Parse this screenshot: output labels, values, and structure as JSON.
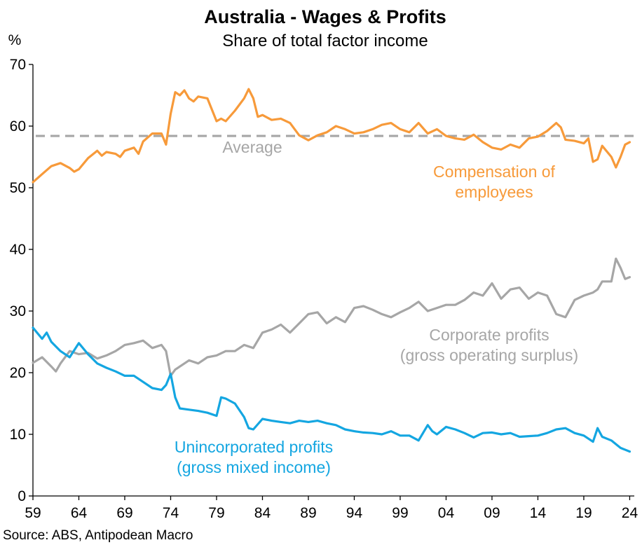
{
  "chart_data": {
    "type": "line",
    "title": "Australia - Wages & Profits",
    "subtitle": "Share of total factor income",
    "ylabel": "%",
    "ylim": [
      0,
      70
    ],
    "yticks": [
      0,
      10,
      20,
      30,
      40,
      50,
      60,
      70
    ],
    "xlim": [
      1959,
      2024.5
    ],
    "xticks": [
      {
        "year": 1959,
        "label": "59"
      },
      {
        "year": 1964,
        "label": "64"
      },
      {
        "year": 1969,
        "label": "69"
      },
      {
        "year": 1974,
        "label": "74"
      },
      {
        "year": 1979,
        "label": "79"
      },
      {
        "year": 1984,
        "label": "84"
      },
      {
        "year": 1989,
        "label": "89"
      },
      {
        "year": 1994,
        "label": "94"
      },
      {
        "year": 1999,
        "label": "99"
      },
      {
        "year": 2004,
        "label": "04"
      },
      {
        "year": 2009,
        "label": "09"
      },
      {
        "year": 2014,
        "label": "14"
      },
      {
        "year": 2019,
        "label": "19"
      },
      {
        "year": 2024,
        "label": "24"
      }
    ],
    "average": {
      "label": "Average",
      "value": 58.4,
      "color": "#a6a6a6"
    },
    "series": [
      {
        "name": "Compensation of employees",
        "label_lines": [
          "Compensation of",
          "employees"
        ],
        "color": "#f79a3a",
        "x": [
          1959.0,
          1960.0,
          1961.0,
          1962.0,
          1963.0,
          1963.5,
          1964.0,
          1965.0,
          1966.0,
          1966.5,
          1967.0,
          1968.0,
          1968.5,
          1969.0,
          1970.0,
          1970.5,
          1971.0,
          1972.0,
          1973.0,
          1973.5,
          1974.0,
          1974.5,
          1975.0,
          1975.5,
          1976.0,
          1976.5,
          1977.0,
          1978.0,
          1979.0,
          1979.5,
          1980.0,
          1981.0,
          1982.0,
          1982.5,
          1983.0,
          1983.5,
          1984.0,
          1985.0,
          1986.0,
          1987.0,
          1988.0,
          1989.0,
          1990.0,
          1991.0,
          1992.0,
          1993.0,
          1994.0,
          1995.0,
          1996.0,
          1997.0,
          1998.0,
          1999.0,
          2000.0,
          2001.0,
          2002.0,
          2003.0,
          2004.0,
          2005.0,
          2006.0,
          2007.0,
          2008.0,
          2009.0,
          2010.0,
          2011.0,
          2012.0,
          2013.0,
          2014.0,
          2015.0,
          2016.0,
          2016.5,
          2017.0,
          2018.0,
          2019.0,
          2019.5,
          2020.0,
          2020.5,
          2021.0,
          2022.0,
          2022.5,
          2023.0,
          2023.5,
          2024.0
        ],
        "values": [
          50.9,
          52.2,
          53.5,
          54.0,
          53.2,
          52.6,
          53.0,
          54.8,
          56.0,
          55.2,
          55.8,
          55.5,
          55.0,
          56.0,
          56.5,
          55.5,
          57.5,
          58.8,
          58.8,
          57.0,
          62.0,
          65.5,
          65.0,
          65.8,
          64.5,
          64.0,
          64.8,
          64.5,
          60.8,
          61.2,
          60.8,
          62.5,
          64.5,
          66.0,
          64.5,
          61.5,
          61.8,
          61.0,
          61.2,
          60.5,
          58.5,
          57.7,
          58.5,
          59.0,
          60.0,
          59.5,
          58.8,
          59.0,
          59.5,
          60.2,
          60.5,
          59.5,
          59.0,
          60.5,
          58.8,
          59.5,
          58.4,
          58.0,
          57.8,
          58.6,
          57.4,
          56.5,
          56.2,
          57.0,
          56.5,
          58.0,
          58.3,
          59.2,
          60.5,
          59.8,
          57.8,
          57.6,
          57.2,
          58.0,
          54.2,
          54.6,
          56.8,
          55.0,
          53.3,
          55.0,
          57.0,
          57.4
        ]
      },
      {
        "name": "Corporate profits (gross operating surplus)",
        "label_lines": [
          "Corporate profits",
          "(gross operating surplus)"
        ],
        "color": "#a6a6a6",
        "x": [
          1959.0,
          1960.0,
          1961.0,
          1961.5,
          1962.0,
          1963.0,
          1964.0,
          1965.0,
          1966.0,
          1967.0,
          1968.0,
          1969.0,
          1970.0,
          1971.0,
          1972.0,
          1973.0,
          1973.5,
          1974.0,
          1974.5,
          1975.0,
          1976.0,
          1977.0,
          1978.0,
          1979.0,
          1980.0,
          1981.0,
          1982.0,
          1983.0,
          1984.0,
          1985.0,
          1986.0,
          1987.0,
          1988.0,
          1989.0,
          1990.0,
          1991.0,
          1992.0,
          1993.0,
          1994.0,
          1995.0,
          1996.0,
          1997.0,
          1998.0,
          1999.0,
          2000.0,
          2001.0,
          2002.0,
          2003.0,
          2004.0,
          2005.0,
          2006.0,
          2007.0,
          2008.0,
          2009.0,
          2010.0,
          2011.0,
          2012.0,
          2013.0,
          2014.0,
          2015.0,
          2016.0,
          2017.0,
          2018.0,
          2019.0,
          2020.0,
          2020.5,
          2021.0,
          2022.0,
          2022.5,
          2023.0,
          2023.5,
          2024.0
        ],
        "values": [
          21.6,
          22.5,
          21.0,
          20.2,
          21.5,
          23.5,
          23.0,
          23.2,
          22.3,
          22.8,
          23.5,
          24.5,
          24.8,
          25.2,
          24.0,
          24.5,
          23.5,
          19.5,
          20.5,
          21.0,
          22.0,
          21.5,
          22.5,
          22.8,
          23.5,
          23.5,
          24.5,
          24.0,
          26.5,
          27.0,
          27.8,
          26.5,
          28.0,
          29.5,
          29.8,
          28.0,
          29.0,
          28.2,
          30.5,
          30.8,
          30.2,
          29.5,
          29.0,
          29.8,
          30.5,
          31.5,
          30.0,
          30.5,
          31.0,
          31.0,
          31.8,
          33.0,
          32.5,
          34.5,
          32.0,
          33.5,
          33.8,
          32.0,
          33.0,
          32.5,
          29.5,
          29.0,
          31.8,
          32.5,
          33.0,
          33.5,
          34.8,
          34.8,
          38.5,
          37.0,
          35.2,
          35.5
        ]
      },
      {
        "name": "Unincorporated profits (gross mixed income)",
        "label_lines": [
          "Unincorporated profits",
          "(gross mixed income)"
        ],
        "color": "#14a6e1",
        "x": [
          1959.0,
          1960.0,
          1960.5,
          1961.0,
          1962.0,
          1963.0,
          1964.0,
          1965.0,
          1966.0,
          1967.0,
          1968.0,
          1969.0,
          1970.0,
          1971.0,
          1972.0,
          1973.0,
          1973.5,
          1974.0,
          1974.5,
          1975.0,
          1976.0,
          1977.0,
          1978.0,
          1979.0,
          1979.5,
          1980.0,
          1981.0,
          1982.0,
          1982.5,
          1983.0,
          1984.0,
          1985.0,
          1986.0,
          1987.0,
          1988.0,
          1989.0,
          1990.0,
          1991.0,
          1992.0,
          1993.0,
          1994.0,
          1995.0,
          1996.0,
          1997.0,
          1998.0,
          1999.0,
          2000.0,
          2001.0,
          2002.0,
          2002.5,
          2003.0,
          2004.0,
          2005.0,
          2006.0,
          2007.0,
          2008.0,
          2009.0,
          2010.0,
          2011.0,
          2012.0,
          2013.0,
          2014.0,
          2015.0,
          2016.0,
          2017.0,
          2018.0,
          2019.0,
          2020.0,
          2020.5,
          2021.0,
          2022.0,
          2023.0,
          2024.0
        ],
        "values": [
          27.3,
          25.5,
          26.5,
          25.0,
          23.5,
          22.5,
          24.8,
          23.0,
          21.5,
          20.8,
          20.2,
          19.5,
          19.5,
          18.5,
          17.5,
          17.2,
          18.0,
          19.8,
          16.0,
          14.2,
          14.0,
          13.8,
          13.5,
          13.0,
          16.0,
          15.8,
          15.0,
          12.8,
          11.0,
          10.8,
          12.5,
          12.2,
          12.0,
          11.8,
          12.2,
          12.0,
          12.2,
          11.8,
          11.5,
          10.8,
          10.5,
          10.3,
          10.2,
          10.0,
          10.5,
          9.8,
          9.8,
          9.0,
          11.5,
          10.5,
          10.0,
          11.2,
          10.8,
          10.2,
          9.5,
          10.2,
          10.3,
          10.0,
          10.2,
          9.6,
          9.7,
          9.8,
          10.2,
          10.8,
          11.0,
          10.2,
          9.8,
          8.8,
          11.0,
          9.6,
          9.0,
          7.8,
          7.2
        ]
      }
    ]
  },
  "source": "Source: ABS, Antipodean Macro"
}
